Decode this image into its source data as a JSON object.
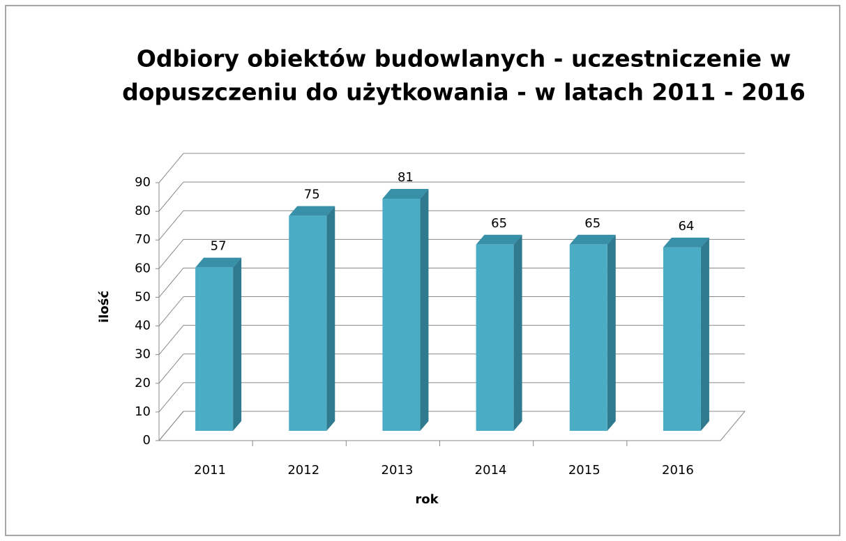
{
  "chart_data": {
    "type": "bar3d",
    "title": [
      "Odbiory obiektów budowlanych - uczestniczenie w",
      "dopuszczeniu do użytkowania - w latach 2011 - 2016"
    ],
    "x_label": "rok",
    "y_label": "ilość",
    "categories": [
      "2011",
      "2012",
      "2013",
      "2014",
      "2015",
      "2016"
    ],
    "values": [
      57,
      75,
      81,
      65,
      65,
      64
    ],
    "color": "#4bacc6",
    "ylim": [
      0,
      90
    ],
    "yticks": [
      0,
      10,
      20,
      30,
      40,
      50,
      60,
      70,
      80,
      90
    ],
    "grid": true
  }
}
